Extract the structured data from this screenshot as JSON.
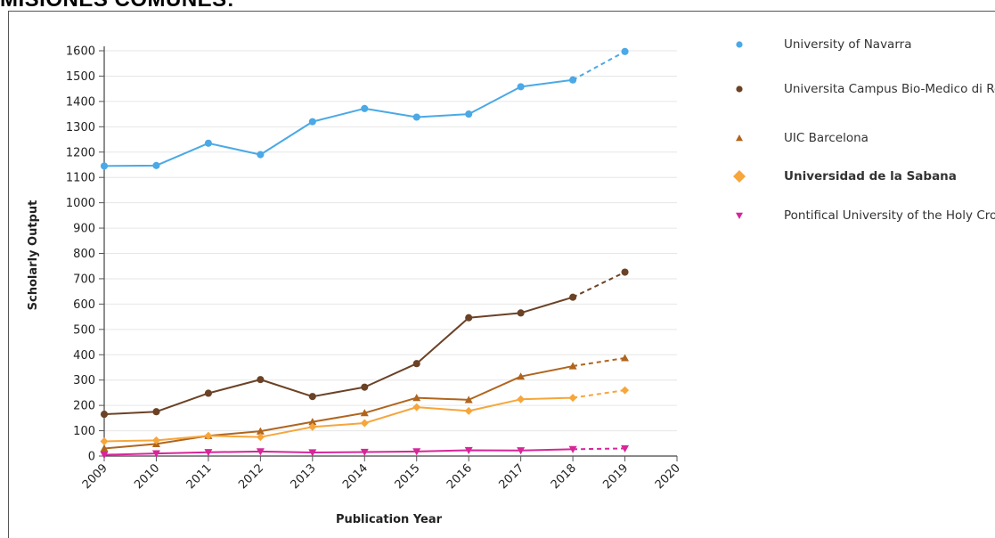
{
  "heading": "MISIONES COMUNES:",
  "colors": {
    "navarra": "#4aa9e6",
    "campus_bio_medico": "#6b4226",
    "uic_barcelona": "#b0651e",
    "sabana": "#f6a63b",
    "holy_cross": "#d6269a"
  },
  "chart_data": {
    "type": "line",
    "xlabel": "Publication Year",
    "ylabel": "Scholarly Output",
    "x": [
      2009,
      2010,
      2011,
      2012,
      2013,
      2014,
      2015,
      2016,
      2017,
      2018,
      2019
    ],
    "x_ticks": [
      "2009",
      "2010",
      "2011",
      "2012",
      "2013",
      "2014",
      "2015",
      "2016",
      "2017",
      "2018",
      "2019",
      "2020"
    ],
    "xlim": [
      2009,
      2020
    ],
    "ylim": [
      0,
      1600
    ],
    "y_ticks": [
      "0",
      "100",
      "200",
      "300",
      "400",
      "500",
      "600",
      "700",
      "800",
      "900",
      "1000",
      "1100",
      "1200",
      "1300",
      "1400",
      "1500",
      "1600"
    ],
    "grid": "horizontal",
    "legend_position": "right",
    "projected_from": 2018,
    "series": [
      {
        "name": "University of Navarra",
        "marker": "circle",
        "color": "#4aa9e6",
        "bold": false,
        "values": [
          1145,
          1147,
          1235,
          1190,
          1320,
          1372,
          1338,
          1350,
          1458,
          1485,
          1597
        ]
      },
      {
        "name": "Universita Campus Bio-Medico di Roma",
        "marker": "circle",
        "color": "#6b4226",
        "bold": false,
        "values": [
          165,
          175,
          248,
          302,
          235,
          272,
          365,
          546,
          565,
          627,
          726
        ]
      },
      {
        "name": "UIC Barcelona",
        "marker": "triangle-up",
        "color": "#b0651e",
        "bold": false,
        "values": [
          30,
          48,
          80,
          98,
          135,
          170,
          230,
          222,
          314,
          355,
          387
        ]
      },
      {
        "name": "Universidad de la Sabana",
        "marker": "diamond",
        "color": "#f6a63b",
        "bold": true,
        "values": [
          58,
          62,
          80,
          75,
          115,
          130,
          193,
          178,
          224,
          230,
          260
        ]
      },
      {
        "name": "Pontifical University of the Holy Cross",
        "marker": "triangle-down",
        "color": "#d6269a",
        "bold": false,
        "values": [
          5,
          10,
          15,
          18,
          14,
          16,
          18,
          23,
          22,
          27,
          30
        ]
      }
    ]
  }
}
